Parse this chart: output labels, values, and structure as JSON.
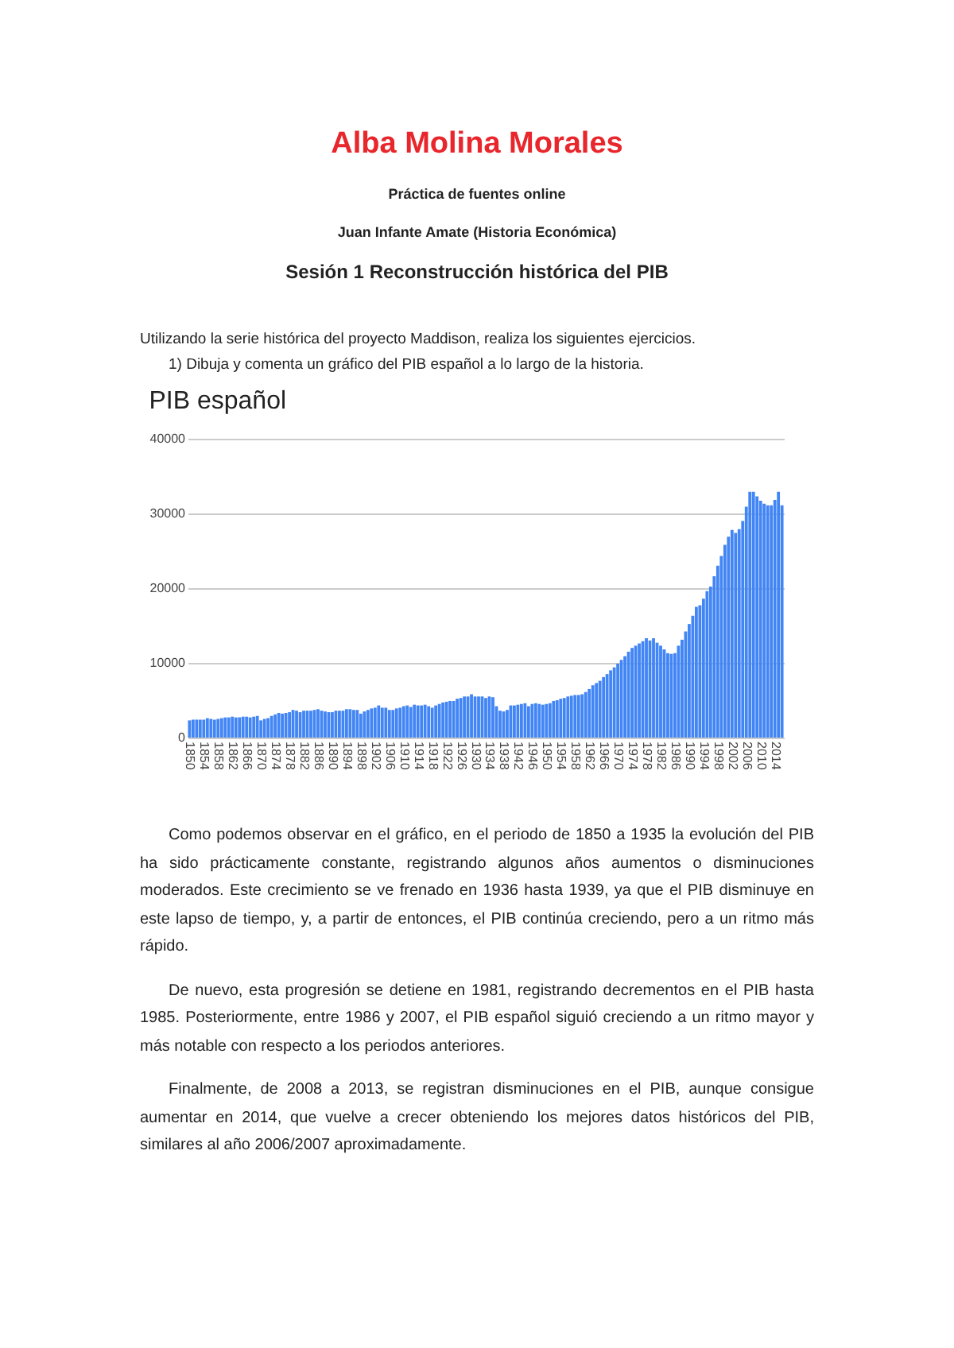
{
  "chart_data": {
    "type": "bar",
    "title": "PIB español",
    "annotations": [
      "Alba Molina Morales",
      "Práctica de fuentes online",
      "Juan Infante Amate (Historia Económica)",
      "Sesión 1 Reconstrucción histórica del PIB",
      "Utilizando la serie histórica del proyecto Maddison, realiza los siguientes ejercicios.",
      "1)   Dibuja y comenta un gráfico del PIB español a lo largo de la historia.",
      "Como podemos observar en el gráfico, en el periodo de 1850 a 1935 la evolución del PIB ha sido prácticamente constante, registrando algunos años aumentos o disminuciones moderados. Este crecimiento se ve frenado en 1936 hasta 1939, ya que el PIB disminuye en este lapso de tiempo, y, a partir de entonces, el PIB continúa creciendo, pero a un ritmo más rápido.",
      "De nuevo, esta progresión se detiene en 1981, registrando decrementos en el PIB hasta 1985. Posteriormente, entre 1986 y 2007, el PIB español siguió creciendo a un ritmo mayor y más notable con respecto a los periodos anteriores.",
      "Finalmente, de 2008 a 2013, se registran disminuciones en el PIB, aunque consigue aumentar en 2014, que vuelve a crecer obteniendo los mejores datos históricos del PIB, similares al año 2006/2007 aproximadamente."
    ],
    "categories": [
      "1850",
      null,
      null,
      null,
      "1854",
      null,
      null,
      null,
      "1858",
      null,
      null,
      null,
      "1862",
      null,
      null,
      null,
      "1866",
      null,
      null,
      null,
      "1870",
      null,
      null,
      null,
      "1874",
      null,
      null,
      null,
      "1878",
      null,
      null,
      null,
      "1882",
      null,
      null,
      null,
      "1886",
      null,
      null,
      null,
      "1890",
      null,
      null,
      null,
      "1894",
      null,
      null,
      null,
      "1898",
      null,
      null,
      null,
      "1902",
      null,
      null,
      null,
      "1906",
      null,
      null,
      null,
      "1910",
      null,
      null,
      null,
      "1914",
      null,
      null,
      null,
      "1918",
      null,
      null,
      null,
      "1922",
      null,
      null,
      null,
      "1926",
      null,
      null,
      null,
      "1930",
      null,
      null,
      null,
      "1934",
      null,
      null,
      null,
      "1938",
      null,
      null,
      null,
      "1942",
      null,
      null,
      null,
      "1946",
      null,
      null,
      null,
      "1950",
      null,
      null,
      null,
      "1954",
      null,
      null,
      null,
      "1958",
      null,
      null,
      null,
      "1962",
      null,
      null,
      null,
      "1966",
      null,
      null,
      null,
      "1970",
      null,
      null,
      null,
      "1974",
      null,
      null,
      null,
      "1978",
      null,
      null,
      null,
      "1982",
      null,
      null,
      null,
      "1986",
      null,
      null,
      null,
      "1990",
      null,
      null,
      null,
      "1994",
      null,
      null,
      null,
      "1998",
      null,
      null,
      null,
      "2002",
      null,
      null,
      null,
      "2006",
      null,
      null,
      null,
      "2010",
      null,
      null,
      null,
      "2014",
      null,
      null
    ],
    "values": [
      2300,
      2400,
      2400,
      2400,
      2400,
      2600,
      2500,
      2400,
      2500,
      2600,
      2700,
      2700,
      2800,
      2700,
      2700,
      2800,
      2800,
      2700,
      2800,
      2900,
      2300,
      2500,
      2600,
      2900,
      3100,
      3300,
      3200,
      3300,
      3400,
      3700,
      3600,
      3400,
      3600,
      3600,
      3600,
      3700,
      3800,
      3600,
      3500,
      3400,
      3400,
      3600,
      3600,
      3600,
      3800,
      3800,
      3700,
      3700,
      3200,
      3500,
      3700,
      3900,
      4000,
      4300,
      4000,
      4000,
      3700,
      3700,
      3900,
      4000,
      4200,
      4300,
      4100,
      4400,
      4300,
      4300,
      4400,
      4200,
      4000,
      4300,
      4500,
      4700,
      4800,
      4900,
      4900,
      5200,
      5300,
      5500,
      5500,
      5800,
      5500,
      5500,
      5500,
      5300,
      5500,
      5400,
      4200,
      3600,
      3500,
      3700,
      4300,
      4300,
      4400,
      4500,
      4600,
      4200,
      4500,
      4600,
      4500,
      4400,
      4500,
      4600,
      4900,
      5000,
      5200,
      5300,
      5500,
      5600,
      5700,
      5700,
      5800,
      6100,
      6500,
      7000,
      7300,
      7600,
      8100,
      8500,
      9000,
      9400,
      9900,
      10400,
      10900,
      11500,
      12000,
      12300,
      12600,
      12900,
      13300,
      13000,
      13300,
      12700,
      12300,
      11800,
      11300,
      11200,
      11300,
      12300,
      13100,
      14200,
      15200,
      16300,
      17500,
      17700,
      18600,
      19600,
      20200,
      21600,
      23000,
      24300,
      25800,
      26900,
      27800,
      27400,
      27900,
      29000,
      30900,
      32900,
      32900,
      32300,
      31700,
      31300,
      31100,
      31100,
      31800,
      32900,
      31100
    ],
    "color": "#4285f4",
    "ylim": [
      0,
      40000
    ],
    "yticks": [
      0,
      10000,
      20000,
      30000,
      40000
    ],
    "grid": "y"
  }
}
